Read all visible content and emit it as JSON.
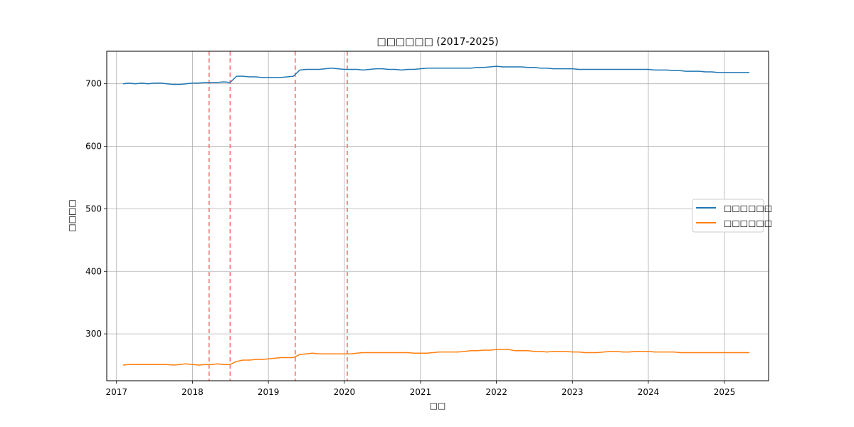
{
  "chart_data": {
    "type": "line",
    "title": "□□□□□□ (2017-2025)",
    "xlabel": "□□",
    "ylabel": "□□□□",
    "xlim": [
      "2016-11-15",
      "2025-08-01"
    ],
    "ylim": [
      225,
      752
    ],
    "x_ticks": [
      "2017",
      "2018",
      "2019",
      "2020",
      "2021",
      "2022",
      "2023",
      "2024",
      "2025"
    ],
    "y_ticks": [
      300,
      400,
      500,
      600,
      700
    ],
    "grid": true,
    "legend_position": "center-right",
    "x": [
      "2017-02-01",
      "2017-03-01",
      "2017-04-01",
      "2017-05-01",
      "2017-06-01",
      "2017-07-01",
      "2017-08-01",
      "2017-09-01",
      "2017-10-01",
      "2017-11-01",
      "2017-12-01",
      "2018-01-01",
      "2018-02-01",
      "2018-03-01",
      "2018-04-01",
      "2018-05-01",
      "2018-06-01",
      "2018-07-01",
      "2018-08-01",
      "2018-09-01",
      "2018-10-01",
      "2018-11-01",
      "2018-12-01",
      "2019-01-01",
      "2019-02-01",
      "2019-03-01",
      "2019-04-01",
      "2019-05-01",
      "2019-06-01",
      "2019-07-01",
      "2019-08-01",
      "2019-09-01",
      "2019-10-01",
      "2019-11-01",
      "2019-12-01",
      "2020-01-01",
      "2020-02-01",
      "2020-03-01",
      "2020-04-01",
      "2020-05-01",
      "2020-06-01",
      "2020-07-01",
      "2020-08-01",
      "2020-09-01",
      "2020-10-01",
      "2020-11-01",
      "2020-12-01",
      "2021-01-01",
      "2021-02-01",
      "2021-03-01",
      "2021-04-01",
      "2021-05-01",
      "2021-06-01",
      "2021-07-01",
      "2021-08-01",
      "2021-09-01",
      "2021-10-01",
      "2021-11-01",
      "2021-12-01",
      "2022-01-01",
      "2022-02-01",
      "2022-03-01",
      "2022-04-01",
      "2022-05-01",
      "2022-06-01",
      "2022-07-01",
      "2022-08-01",
      "2022-09-01",
      "2022-10-01",
      "2022-11-01",
      "2022-12-01",
      "2023-01-01",
      "2023-02-01",
      "2023-03-01",
      "2023-04-01",
      "2023-05-01",
      "2023-06-01",
      "2023-07-01",
      "2023-08-01",
      "2023-09-01",
      "2023-10-01",
      "2023-11-01",
      "2023-12-01",
      "2024-01-01",
      "2024-02-01",
      "2024-03-01",
      "2024-04-01",
      "2024-05-01",
      "2024-06-01",
      "2024-07-01",
      "2024-08-01",
      "2024-09-01",
      "2024-10-01",
      "2024-11-01",
      "2024-12-01",
      "2025-01-01",
      "2025-02-01",
      "2025-03-01",
      "2025-04-01",
      "2025-05-01"
    ],
    "series": [
      {
        "name": "□□□□□□",
        "color": "#1f77b4",
        "values": [
          700,
          701,
          700,
          701,
          700,
          701,
          701,
          700,
          699,
          699,
          700,
          701,
          701,
          702,
          702,
          702,
          703,
          702,
          712,
          712,
          711,
          711,
          710,
          710,
          710,
          710,
          711,
          712,
          722,
          723,
          723,
          723,
          724,
          725,
          724,
          723,
          723,
          723,
          722,
          723,
          724,
          724,
          723,
          723,
          722,
          723,
          723,
          724,
          725,
          725,
          725,
          725,
          725,
          725,
          725,
          725,
          726,
          726,
          727,
          728,
          727,
          727,
          727,
          727,
          726,
          726,
          725,
          725,
          724,
          724,
          724,
          724,
          723,
          723,
          723,
          723,
          723,
          723,
          723,
          723,
          723,
          723,
          723,
          723,
          722,
          722,
          722,
          721,
          721,
          720,
          720,
          720,
          719,
          719,
          718,
          718,
          718,
          718,
          718,
          718
        ],
        "data_name": "series-line-1"
      },
      {
        "name": "□□□□□□",
        "color": "#ff7f0e",
        "values": [
          250,
          251,
          251,
          251,
          251,
          251,
          251,
          251,
          250,
          251,
          252,
          251,
          250,
          251,
          251,
          252,
          251,
          251,
          256,
          258,
          258,
          259,
          259,
          260,
          261,
          262,
          262,
          262,
          267,
          268,
          269,
          268,
          268,
          268,
          268,
          268,
          268,
          269,
          270,
          270,
          270,
          270,
          270,
          270,
          270,
          270,
          269,
          269,
          269,
          270,
          271,
          271,
          271,
          271,
          272,
          273,
          273,
          274,
          274,
          275,
          275,
          275,
          273,
          273,
          273,
          272,
          272,
          271,
          272,
          272,
          272,
          271,
          271,
          270,
          270,
          270,
          271,
          272,
          272,
          271,
          271,
          272,
          272,
          272,
          271,
          271,
          271,
          271,
          270,
          270,
          270,
          270,
          270,
          270,
          270,
          270,
          270,
          270,
          270,
          270
        ],
        "data_name": "series-line-2"
      }
    ],
    "reference_lines": {
      "color": "#ff6666",
      "dates": [
        "2018-03-22",
        "2018-07-01",
        "2019-05-10",
        "2020-01-15"
      ]
    }
  }
}
